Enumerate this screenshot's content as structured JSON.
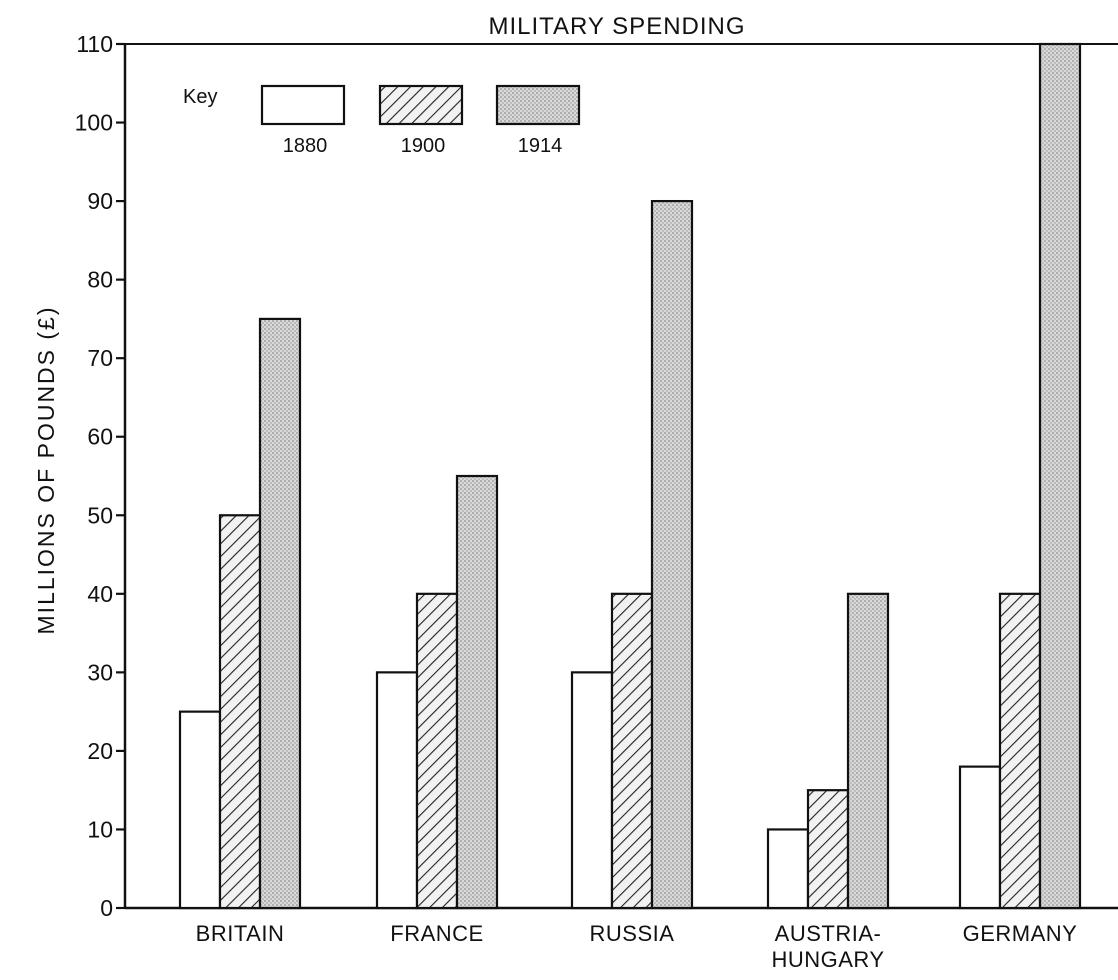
{
  "chart_data": {
    "type": "bar",
    "title": "MILITARY SPENDING",
    "ylabel": "MILLIONS OF POUNDS (£)",
    "xlabel": "",
    "ylim": [
      0,
      110
    ],
    "yticks": [
      "0",
      "10",
      "20",
      "30",
      "40",
      "50",
      "60",
      "70",
      "80",
      "90",
      "100",
      "110"
    ],
    "categories": [
      "BRITAIN",
      "FRANCE",
      "RUSSIA",
      "AUSTRIA-HUNGARY",
      "GERMANY"
    ],
    "category_lines": [
      [
        "BRITAIN"
      ],
      [
        "FRANCE"
      ],
      [
        "RUSSIA"
      ],
      [
        "AUSTRIA-",
        "HUNGARY"
      ],
      [
        "GERMANY"
      ]
    ],
    "legend": {
      "title": "Key",
      "position": "top-left"
    },
    "grid": false,
    "series": [
      {
        "name": "1880",
        "fill": "plain",
        "color": "#ffffff",
        "values": [
          25,
          30,
          30,
          10,
          18
        ]
      },
      {
        "name": "1900",
        "fill": "hatched",
        "color": "#c8c8c8",
        "values": [
          50,
          40,
          40,
          15,
          40
        ]
      },
      {
        "name": "1914",
        "fill": "dotted",
        "color": "#d0d0d0",
        "values": [
          75,
          55,
          90,
          40,
          110
        ]
      }
    ]
  }
}
